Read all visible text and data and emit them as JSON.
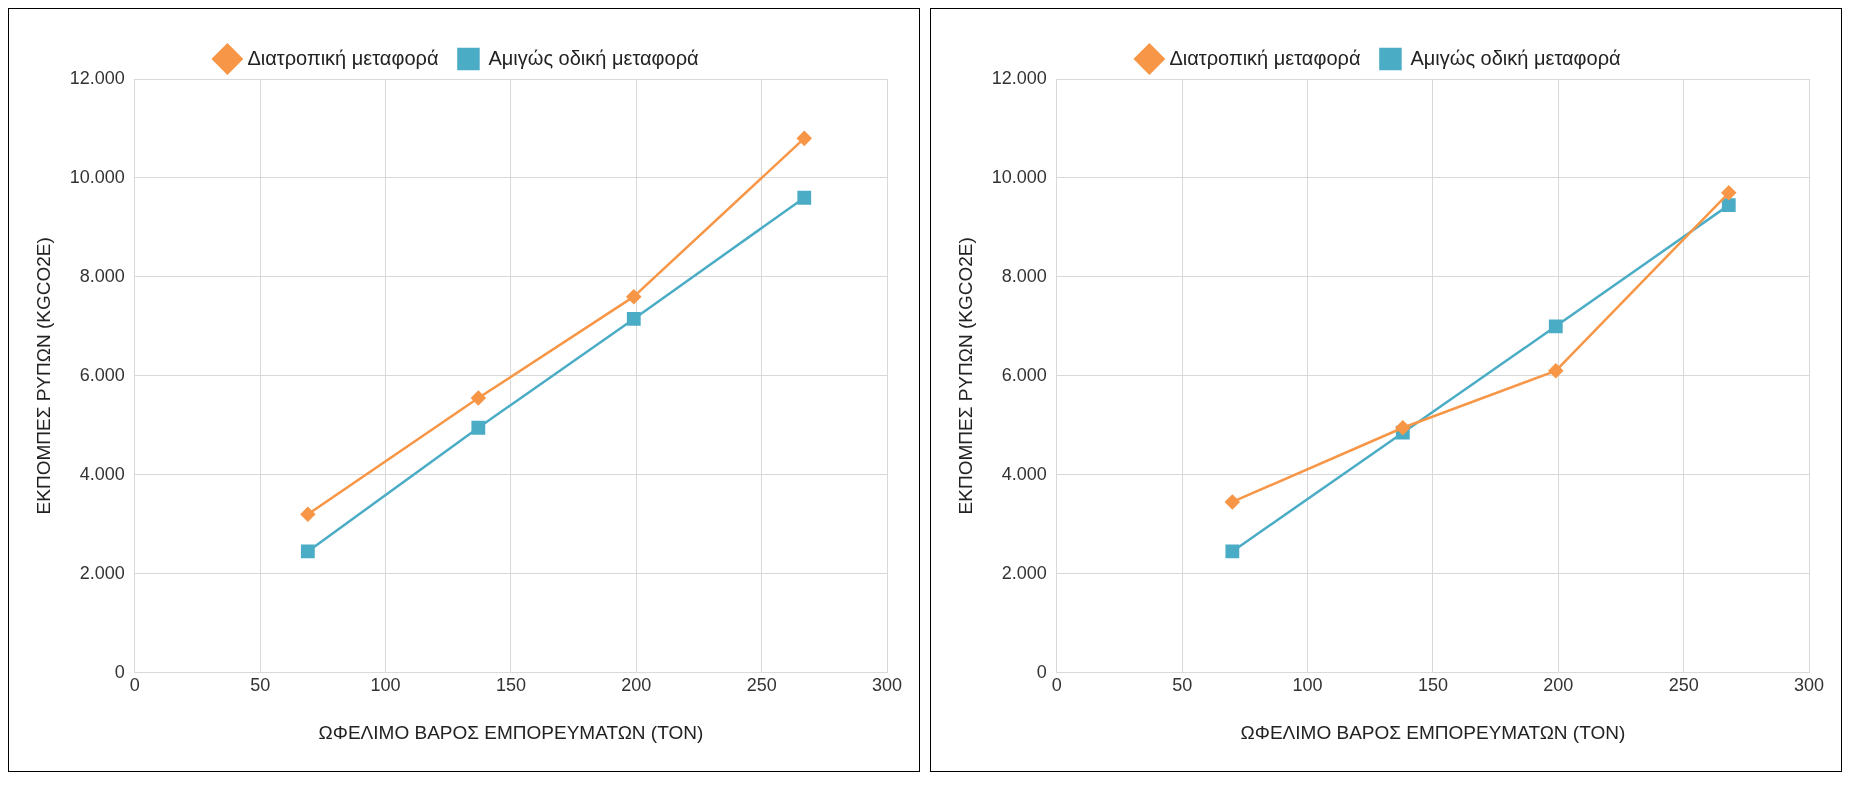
{
  "chart_data": [
    {
      "type": "line",
      "xlabel": "ΩΦΕΛΙΜΟ ΒΑΡΟΣ ΕΜΠΟΡΕΥΜΑΤΩΝ (ΤΟΝ)",
      "ylabel": "ΕΚΠΟΜΠΕΣ ΡΥΠΩΝ (KGCO2E)",
      "x": [
        69,
        137,
        199,
        267
      ],
      "series": [
        {
          "name": "Διατροπική μεταφορά",
          "color": "#f79646",
          "marker": "diamond",
          "values": [
            3200,
            5550,
            7600,
            10800
          ]
        },
        {
          "name": "Αμιγώς οδική μεταφορά",
          "color": "#4bacc6",
          "marker": "square",
          "values": [
            2450,
            4950,
            7150,
            9600
          ]
        }
      ],
      "xlim": [
        0,
        300
      ],
      "xticks": [
        0,
        50,
        100,
        150,
        200,
        250,
        300
      ],
      "ylim": [
        0,
        12000
      ],
      "yticks": [
        0,
        {
          "value": 2000,
          "label": "2.000"
        },
        {
          "value": 4000,
          "label": "4.000"
        },
        {
          "value": 6000,
          "label": "6.000"
        },
        {
          "value": 8000,
          "label": "8.000"
        },
        {
          "value": 10000,
          "label": "10.000"
        },
        {
          "value": 12000,
          "label": "12.000"
        }
      ],
      "grid": true,
      "legend": "top",
      "line_style": "solid"
    },
    {
      "type": "line",
      "xlabel": "ΩΦΕΛΙΜΟ ΒΑΡΟΣ ΕΜΠΟΡΕΥΜΑΤΩΝ (ΤΟΝ)",
      "ylabel": "ΕΚΠΟΜΠΕΣ ΡΥΠΩΝ (KGCO2E)",
      "x": [
        70,
        138,
        199,
        268
      ],
      "series": [
        {
          "name": "Διατροπική μεταφορά",
          "color": "#f79646",
          "marker": "diamond",
          "values": [
            3450,
            4950,
            6100,
            9700
          ]
        },
        {
          "name": "Αμιγώς οδική μεταφορά",
          "color": "#4bacc6",
          "marker": "square",
          "values": [
            2450,
            4850,
            7000,
            9450
          ]
        }
      ],
      "xlim": [
        0,
        300
      ],
      "xticks": [
        0,
        50,
        100,
        150,
        200,
        250,
        300
      ],
      "ylim": [
        0,
        12000
      ],
      "yticks": [
        0,
        {
          "value": 2000,
          "label": "2.000"
        },
        {
          "value": 4000,
          "label": "4.000"
        },
        {
          "value": 6000,
          "label": "6.000"
        },
        {
          "value": 8000,
          "label": "8.000"
        },
        {
          "value": 10000,
          "label": "10.000"
        },
        {
          "value": 12000,
          "label": "12.000"
        }
      ],
      "grid": true,
      "legend": "top",
      "line_style": "solid"
    }
  ]
}
